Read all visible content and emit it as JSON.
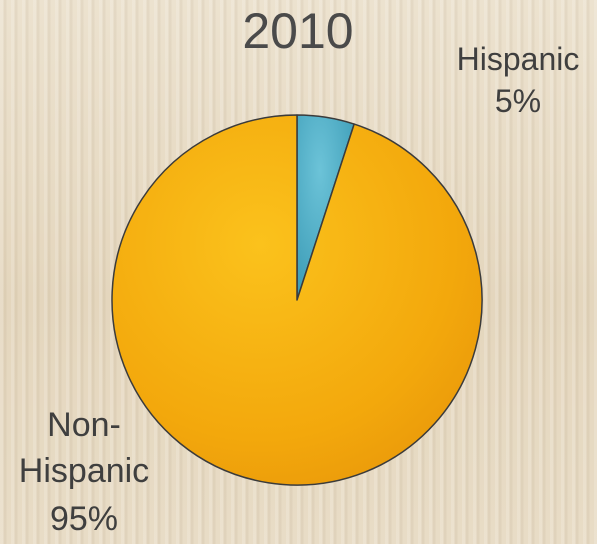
{
  "chart_data": {
    "type": "pie",
    "title": "2010",
    "categories": [
      "Hispanic",
      "Non-Hispanic"
    ],
    "values": [
      5,
      95
    ],
    "colors": [
      "#4bacc6",
      "#f5aa10"
    ],
    "labels": [
      {
        "name_lines": [
          "Hispanic"
        ],
        "value_text": "5%"
      },
      {
        "name_lines": [
          "Non-",
          "Hispanic"
        ],
        "value_text": "95%"
      }
    ],
    "legend": "none"
  }
}
